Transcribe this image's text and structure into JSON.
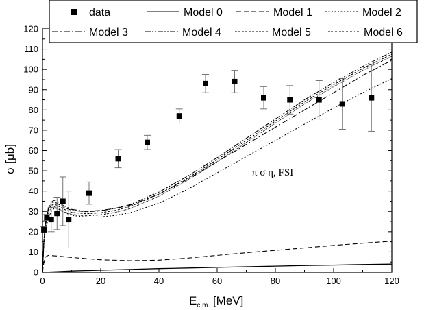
{
  "chart_data": {
    "type": "scatter",
    "title": "",
    "xlabel": "E",
    "xlabel_sub": "c.m.",
    "xlabel_unit": " [MeV]",
    "ylabel": "σ [μb]",
    "xlim": [
      0,
      120
    ],
    "ylim": [
      0,
      120
    ],
    "xticks": [
      0,
      20,
      40,
      60,
      80,
      100,
      120
    ],
    "yticks": [
      0,
      10,
      20,
      30,
      40,
      50,
      60,
      70,
      80,
      90,
      100,
      110,
      120
    ],
    "annotation": "π σ η, FSI",
    "legend": {
      "placement": "top",
      "entries": [
        {
          "label": "data",
          "style": "marker"
        },
        {
          "label": "Model 0",
          "style": "solid"
        },
        {
          "label": "Model 1",
          "style": "dash"
        },
        {
          "label": "Model 2",
          "style": "dot"
        },
        {
          "label": "Model 3",
          "style": "dashdot"
        },
        {
          "label": "Model 4",
          "style": "dashdotdot"
        },
        {
          "label": "Model 5",
          "style": "shortdash"
        },
        {
          "label": "Model 6",
          "style": "fine"
        }
      ]
    },
    "data_points": [
      {
        "x": 0.5,
        "y": 21,
        "err": 1.5
      },
      {
        "x": 1.5,
        "y": 27,
        "err": 1.5
      },
      {
        "x": 3,
        "y": 26,
        "err": 6
      },
      {
        "x": 5,
        "y": 29,
        "err": 8
      },
      {
        "x": 7,
        "y": 35,
        "err": 12
      },
      {
        "x": 9,
        "y": 26,
        "err": 14
      },
      {
        "x": 16,
        "y": 39,
        "err": 5.5
      },
      {
        "x": 26,
        "y": 56,
        "err": 4.5
      },
      {
        "x": 36,
        "y": 64,
        "err": 3.5
      },
      {
        "x": 47,
        "y": 77,
        "err": 3.5
      },
      {
        "x": 56,
        "y": 93,
        "err": 4.5
      },
      {
        "x": 66,
        "y": 94,
        "err": 5.5
      },
      {
        "x": 76,
        "y": 86,
        "err": 5.5
      },
      {
        "x": 85,
        "y": 85,
        "err": 7
      },
      {
        "x": 95,
        "y": 85,
        "err": 9.5
      },
      {
        "x": 103,
        "y": 83,
        "err": 12.5
      },
      {
        "x": 113,
        "y": 86,
        "err": 16.5
      }
    ],
    "series": [
      {
        "name": "Model 0",
        "style": "solid",
        "x": [
          0,
          5,
          10,
          20,
          30,
          40,
          50,
          60,
          70,
          80,
          90,
          100,
          110,
          120
        ],
        "y": [
          0,
          0.3,
          0.6,
          1.0,
          1.4,
          1.8,
          2.1,
          2.4,
          2.7,
          3.0,
          3.3,
          3.5,
          3.8,
          4.0
        ]
      },
      {
        "name": "Model 1",
        "style": "dash",
        "x": [
          0,
          0.5,
          1,
          2,
          5,
          10,
          20,
          30,
          40,
          50,
          60,
          70,
          80,
          90,
          100,
          110,
          120
        ],
        "y": [
          0,
          5,
          7.5,
          8.3,
          8.0,
          7.3,
          6.2,
          5.7,
          6.0,
          7.0,
          8.3,
          9.6,
          10.8,
          12.0,
          13.2,
          14.3,
          15.3
        ]
      },
      {
        "name": "Model 2",
        "style": "dot",
        "x": [
          0,
          0.5,
          1,
          2,
          3,
          4,
          5,
          7,
          10,
          15,
          20,
          25,
          30,
          40,
          50,
          60,
          70,
          80,
          90,
          100,
          110,
          120
        ],
        "y": [
          0,
          14,
          21,
          26.5,
          30,
          31.5,
          31.5,
          29.8,
          28,
          27.2,
          27.2,
          28,
          29.3,
          34,
          41,
          49,
          57,
          65,
          73,
          81,
          88.5,
          95.5
        ]
      },
      {
        "name": "Model 3",
        "style": "dashdot",
        "x": [
          0,
          0.5,
          1,
          2,
          3,
          4,
          5,
          7,
          10,
          15,
          20,
          25,
          30,
          40,
          50,
          60,
          70,
          80,
          90,
          100,
          110,
          120
        ],
        "y": [
          0,
          16,
          24,
          31,
          34.5,
          35.5,
          35,
          33,
          31,
          30,
          30.5,
          31.5,
          33,
          38.5,
          46,
          54.5,
          63,
          71.5,
          80,
          88.5,
          97,
          104.5
        ]
      },
      {
        "name": "Model 4",
        "style": "dashdotdot",
        "x": [
          0,
          0.5,
          1,
          2,
          3,
          4,
          5,
          7,
          10,
          15,
          20,
          25,
          30,
          40,
          50,
          60,
          70,
          80,
          90,
          100,
          110,
          120
        ],
        "y": [
          0,
          16,
          24.5,
          31.5,
          34,
          34.5,
          34,
          32.2,
          30.5,
          29.8,
          30.3,
          31.5,
          33.3,
          39.5,
          47.5,
          56.5,
          66,
          75.5,
          85,
          93.5,
          101.5,
          108.5
        ]
      },
      {
        "name": "Model 5",
        "style": "shortdash",
        "x": [
          0,
          0.5,
          1,
          2,
          3,
          4,
          5,
          7,
          10,
          15,
          20,
          25,
          30,
          40,
          50,
          60,
          70,
          80,
          90,
          100,
          110,
          120
        ],
        "y": [
          0,
          15.5,
          23.5,
          30.5,
          33,
          33.5,
          33,
          31.3,
          29.5,
          28.8,
          29.3,
          30.5,
          32.3,
          38.5,
          46.5,
          55.5,
          65,
          74.5,
          84,
          92.5,
          100.5,
          107.5
        ]
      },
      {
        "name": "Model 6",
        "style": "fine",
        "x": [
          0,
          0.5,
          1,
          2,
          3,
          4,
          5,
          7,
          10,
          15,
          20,
          25,
          30,
          40,
          50,
          60,
          70,
          80,
          90,
          100,
          110,
          120
        ],
        "y": [
          0,
          15,
          22.5,
          29,
          31.8,
          32.3,
          31.8,
          30,
          28.5,
          27.8,
          28.3,
          29.5,
          31.3,
          37.5,
          45.5,
          54.5,
          64,
          73.5,
          83,
          91.5,
          99.5,
          106.5
        ]
      }
    ]
  }
}
